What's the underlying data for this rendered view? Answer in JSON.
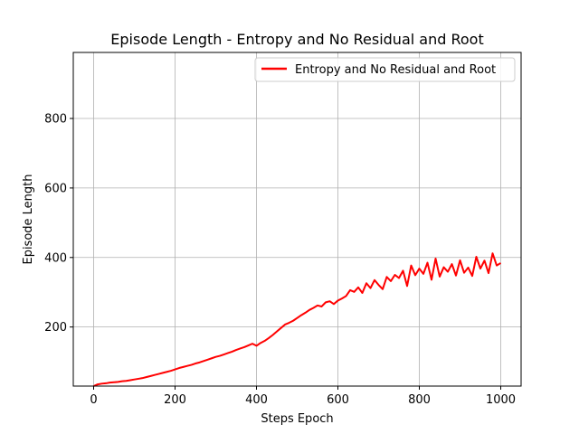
{
  "chart_data": {
    "type": "line",
    "title": "Episode Length - Entropy and No Residual and Root",
    "xlabel": "Steps Epoch",
    "ylabel": "Episode Length",
    "xlim": [
      -50,
      1050
    ],
    "ylim": [
      30,
      990
    ],
    "xticks": [
      0,
      200,
      400,
      600,
      800,
      1000
    ],
    "yticks": [
      200,
      400,
      600,
      800
    ],
    "grid": true,
    "legend_position": "upper right",
    "series": [
      {
        "name": "Entropy and No Residual and Root",
        "color": "#ff0000",
        "x": [
          0,
          10,
          20,
          30,
          40,
          50,
          60,
          70,
          80,
          90,
          100,
          110,
          120,
          130,
          140,
          150,
          160,
          170,
          180,
          190,
          200,
          210,
          220,
          230,
          240,
          250,
          260,
          270,
          280,
          290,
          300,
          310,
          320,
          330,
          340,
          350,
          360,
          370,
          380,
          390,
          400,
          410,
          420,
          430,
          440,
          450,
          460,
          470,
          480,
          490,
          500,
          510,
          520,
          530,
          540,
          550,
          560,
          570,
          580,
          590,
          600,
          610,
          620,
          630,
          640,
          650,
          660,
          670,
          680,
          690,
          700,
          710,
          720,
          730,
          740,
          750,
          760,
          770,
          780,
          790,
          800,
          810,
          820,
          830,
          840,
          850,
          860,
          870,
          880,
          890,
          900,
          910,
          920,
          930,
          940,
          950,
          960,
          970,
          980,
          990,
          1000
        ],
        "y": [
          30,
          35,
          37,
          38,
          40,
          41,
          42,
          44,
          45,
          47,
          49,
          51,
          53,
          56,
          59,
          62,
          65,
          68,
          71,
          74,
          78,
          82,
          85,
          88,
          91,
          95,
          98,
          102,
          106,
          110,
          114,
          117,
          121,
          125,
          129,
          134,
          138,
          142,
          147,
          152,
          146,
          154,
          160,
          168,
          177,
          187,
          197,
          207,
          212,
          218,
          226,
          234,
          241,
          249,
          255,
          262,
          259,
          271,
          274,
          266,
          276,
          282,
          289,
          306,
          301,
          314,
          298,
          326,
          312,
          335,
          321,
          309,
          344,
          332,
          350,
          341,
          362,
          318,
          377,
          349,
          368,
          353,
          385,
          336,
          397,
          345,
          372,
          359,
          381,
          348,
          392,
          356,
          371,
          347,
          402,
          368,
          391,
          355,
          412,
          377,
          384
        ]
      }
    ]
  }
}
